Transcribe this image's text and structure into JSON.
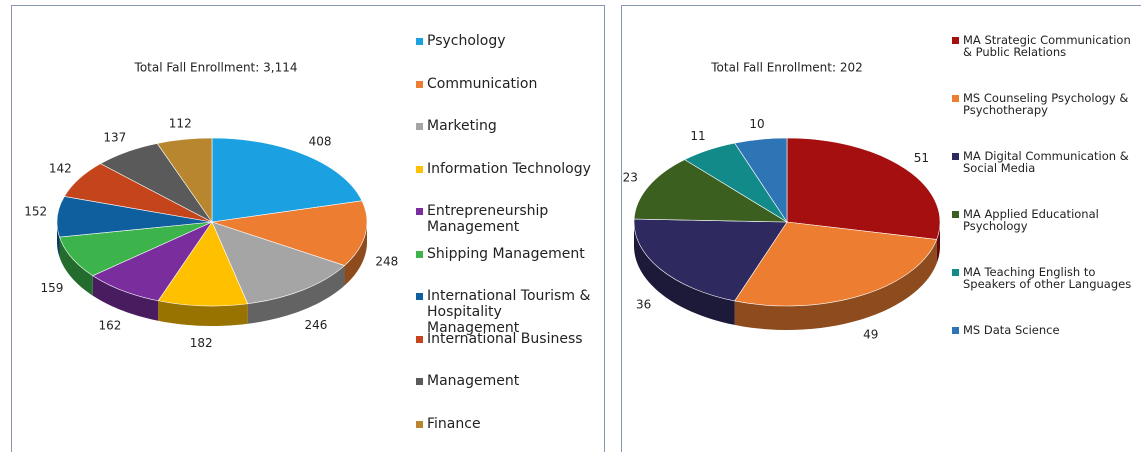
{
  "chart_data": [
    {
      "type": "pie3d",
      "title": "Total Fall Enrollment: 3,114",
      "categories": [
        "Psychology",
        "Communication",
        "Marketing",
        "Information Technology",
        "Entrepreneurship Management",
        "Shipping Management",
        "International Tourism & Hospitality Management",
        "International Business",
        "Management",
        "Finance"
      ],
      "values": [
        408,
        248,
        246,
        182,
        162,
        159,
        152,
        142,
        137,
        112
      ],
      "colors": [
        "#1ba1e2",
        "#ed7d31",
        "#a5a5a5",
        "#ffc000",
        "#7a2e9e",
        "#3cb44b",
        "#0f5f9e",
        "#c4451c",
        "#5a5a5a",
        "#b8862e"
      ]
    },
    {
      "type": "pie3d",
      "title": "Total Fall Enrollment: 202",
      "categories": [
        "MA Strategic Communication & Public Relations",
        "MS Counseling Psychology & Psychotherapy",
        "MA Digital Communication & Social Media",
        "MA Applied Educational Psychology",
        "MA Teaching English to Speakers of other Languages",
        "MS Data Science"
      ],
      "values": [
        51,
        49,
        36,
        23,
        11,
        10
      ],
      "colors": [
        "#a50f0f",
        "#ed7d31",
        "#2e2a5f",
        "#3a5f1f",
        "#138a8a",
        "#2e75b6"
      ]
    }
  ]
}
